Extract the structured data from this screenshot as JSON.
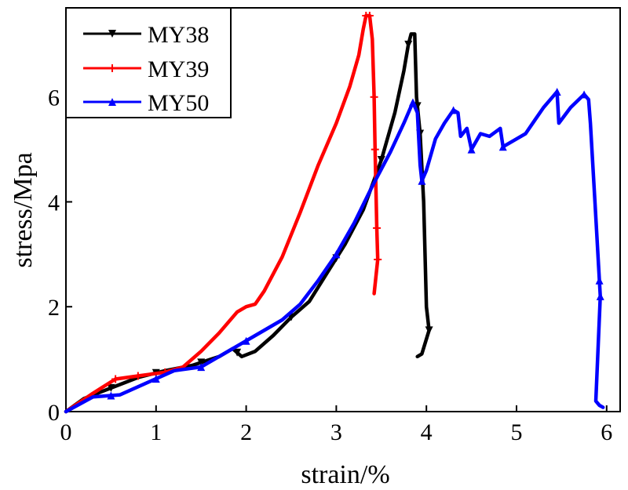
{
  "chart_data": {
    "type": "line",
    "title": "",
    "xlabel": "strain/%",
    "ylabel": "stress/Mpa",
    "xlim": [
      0,
      6.15
    ],
    "ylim": [
      0,
      7.7
    ],
    "xticks": [
      0,
      1,
      2,
      3,
      4,
      5,
      6
    ],
    "yticks": [
      0,
      2,
      4,
      6
    ],
    "xtick_labels": [
      "0",
      "1",
      "2",
      "3",
      "4",
      "5",
      "6"
    ],
    "ytick_labels": [
      "0",
      "2",
      "4",
      "6"
    ],
    "legend_position": "top-left",
    "series": [
      {
        "name": "MY38",
        "color": "#000000",
        "marker": "triangle-down",
        "points": [
          [
            0,
            0
          ],
          [
            0.2,
            0.25
          ],
          [
            0.5,
            0.45
          ],
          [
            0.8,
            0.65
          ],
          [
            1.1,
            0.78
          ],
          [
            1.4,
            0.88
          ],
          [
            1.7,
            1.05
          ],
          [
            1.85,
            1.2
          ],
          [
            1.95,
            1.05
          ],
          [
            2.1,
            1.15
          ],
          [
            2.3,
            1.45
          ],
          [
            2.5,
            1.8
          ],
          [
            2.7,
            2.1
          ],
          [
            2.9,
            2.65
          ],
          [
            3.1,
            3.2
          ],
          [
            3.3,
            3.85
          ],
          [
            3.5,
            4.8
          ],
          [
            3.65,
            5.7
          ],
          [
            3.75,
            6.5
          ],
          [
            3.8,
            7.0
          ],
          [
            3.83,
            7.2
          ],
          [
            3.87,
            7.2
          ],
          [
            3.89,
            6.0
          ],
          [
            3.93,
            5.3
          ],
          [
            3.97,
            4.0
          ],
          [
            4.0,
            2.0
          ],
          [
            4.03,
            1.55
          ],
          [
            3.95,
            1.1
          ],
          [
            3.9,
            1.05
          ]
        ],
        "markers_at": [
          0.5,
          1.0,
          1.5,
          1.9,
          2.5,
          3.0,
          3.5,
          3.8,
          3.93,
          4.03,
          3.9
        ]
      },
      {
        "name": "MY39",
        "color": "#ff0000",
        "marker": "plus",
        "points": [
          [
            0,
            0
          ],
          [
            0.3,
            0.35
          ],
          [
            0.55,
            0.62
          ],
          [
            0.8,
            0.68
          ],
          [
            1.1,
            0.75
          ],
          [
            1.3,
            0.85
          ],
          [
            1.5,
            1.15
          ],
          [
            1.7,
            1.5
          ],
          [
            1.9,
            1.9
          ],
          [
            2.0,
            2.0
          ],
          [
            2.1,
            2.05
          ],
          [
            2.2,
            2.3
          ],
          [
            2.4,
            2.95
          ],
          [
            2.6,
            3.8
          ],
          [
            2.8,
            4.7
          ],
          [
            3.0,
            5.5
          ],
          [
            3.15,
            6.2
          ],
          [
            3.25,
            6.8
          ],
          [
            3.3,
            7.3
          ],
          [
            3.33,
            7.55
          ],
          [
            3.37,
            7.55
          ],
          [
            3.4,
            7.1
          ],
          [
            3.42,
            6.0
          ],
          [
            3.43,
            5.0
          ],
          [
            3.45,
            3.5
          ],
          [
            3.46,
            2.9
          ],
          [
            3.42,
            2.25
          ]
        ],
        "markers_at": [
          0.55,
          0.8,
          1.1,
          3.33,
          3.37,
          3.43,
          3.45,
          3.46,
          3.42
        ]
      },
      {
        "name": "MY50",
        "color": "#0000ff",
        "marker": "triangle-up",
        "points": [
          [
            0,
            0
          ],
          [
            0.3,
            0.28
          ],
          [
            0.6,
            0.32
          ],
          [
            0.9,
            0.55
          ],
          [
            1.2,
            0.78
          ],
          [
            1.5,
            0.85
          ],
          [
            1.8,
            1.15
          ],
          [
            2.1,
            1.45
          ],
          [
            2.4,
            1.75
          ],
          [
            2.6,
            2.05
          ],
          [
            2.8,
            2.5
          ],
          [
            3.0,
            3.0
          ],
          [
            3.2,
            3.6
          ],
          [
            3.4,
            4.3
          ],
          [
            3.6,
            4.95
          ],
          [
            3.75,
            5.5
          ],
          [
            3.85,
            5.9
          ],
          [
            3.9,
            5.7
          ],
          [
            3.93,
            4.7
          ],
          [
            3.95,
            4.4
          ],
          [
            4.0,
            4.6
          ],
          [
            4.1,
            5.2
          ],
          [
            4.2,
            5.5
          ],
          [
            4.3,
            5.75
          ],
          [
            4.35,
            5.7
          ],
          [
            4.38,
            5.25
          ],
          [
            4.45,
            5.4
          ],
          [
            4.5,
            5.0
          ],
          [
            4.6,
            5.3
          ],
          [
            4.7,
            5.25
          ],
          [
            4.82,
            5.4
          ],
          [
            4.85,
            5.05
          ],
          [
            5.0,
            5.2
          ],
          [
            5.1,
            5.3
          ],
          [
            5.2,
            5.55
          ],
          [
            5.3,
            5.8
          ],
          [
            5.4,
            6.0
          ],
          [
            5.45,
            6.1
          ],
          [
            5.47,
            5.5
          ],
          [
            5.6,
            5.8
          ],
          [
            5.75,
            6.05
          ],
          [
            5.8,
            5.95
          ],
          [
            5.82,
            5.5
          ],
          [
            5.87,
            4.0
          ],
          [
            5.93,
            2.2
          ],
          [
            5.88,
            0.2
          ],
          [
            5.92,
            0.12
          ],
          [
            5.96,
            0.08
          ]
        ],
        "markers_at": [
          0.5,
          1.0,
          1.5,
          2.0,
          3.0,
          3.85,
          3.95,
          4.3,
          4.5,
          4.85,
          5.45,
          5.75,
          5.93,
          5.92
        ]
      }
    ]
  }
}
